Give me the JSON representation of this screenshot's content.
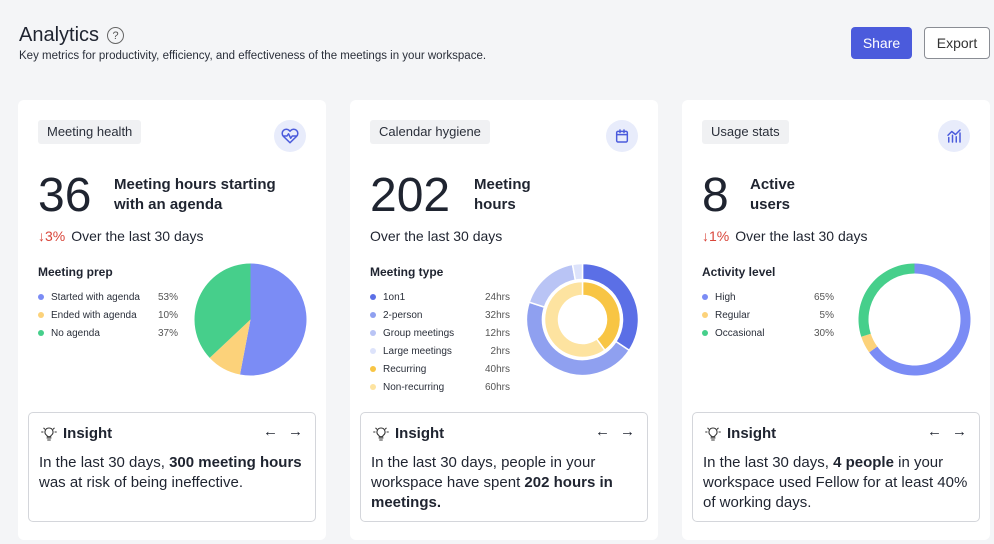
{
  "header": {
    "title": "Analytics",
    "help_glyph": "?",
    "subtitle": "Key metrics for productivity, efficiency, and effectiveness of the meetings in your workspace.",
    "share_label": "Share",
    "export_label": "Export"
  },
  "colors": {
    "accent": "#4b5bdc",
    "down": "#d9453a"
  },
  "cards": [
    {
      "tag": "Meeting health",
      "icon": "heart-pulse-icon",
      "number": "36",
      "label_line1": "Meeting hours starting",
      "label_line2": "with an agenda",
      "change": "3%",
      "change_text": "Over the last 30 days",
      "legend_title": "Meeting prep",
      "legend": [
        {
          "name": "Started with agenda",
          "value": "53%",
          "color": "#7b8cf5"
        },
        {
          "name": "Ended with agenda",
          "value": "10%",
          "color": "#fcd27a"
        },
        {
          "name": "No agenda",
          "value": "37%",
          "color": "#46cf8b"
        }
      ],
      "insight_title": "Insight",
      "insight_pre": "In the last 30 days, ",
      "insight_bold": "300 meeting hours",
      "insight_post": " was at risk of being ineffective.",
      "insight_bold2": "",
      "insight_post2": ""
    },
    {
      "tag": "Calendar hygiene",
      "icon": "calendar-icon",
      "number": "202",
      "label_line1": "Meeting",
      "label_line2": "hours",
      "change": "",
      "change_text": "Over the last 30 days",
      "legend_title": "Meeting type",
      "legend": [
        {
          "name": "1on1",
          "value": "24hrs",
          "color": "#5b6fe6"
        },
        {
          "name": "2-person",
          "value": "32hrs",
          "color": "#8fa0f0"
        },
        {
          "name": "Group meetings",
          "value": "12hrs",
          "color": "#b9c4f5"
        },
        {
          "name": "Large meetings",
          "value": "2hrs",
          "color": "#dde3fb"
        },
        {
          "name": "Recurring",
          "value": "40hrs",
          "color": "#f8c544"
        },
        {
          "name": "Non-recurring",
          "value": "60hrs",
          "color": "#fde3a0"
        }
      ],
      "insight_title": "Insight",
      "insight_pre": "In the last 30 days, people in your workspace have spent ",
      "insight_bold": "202 hours in meetings.",
      "insight_post": "",
      "insight_bold2": "",
      "insight_post2": ""
    },
    {
      "tag": "Usage stats",
      "icon": "bar-chart-icon",
      "number": "8",
      "label_line1": "Active",
      "label_line2": "users",
      "change": "1%",
      "change_text": "Over the last 30 days",
      "legend_title": "Activity level",
      "legend": [
        {
          "name": "High",
          "value": "65%",
          "color": "#7b8cf5"
        },
        {
          "name": "Regular",
          "value": "5%",
          "color": "#fcd27a"
        },
        {
          "name": "Occasional",
          "value": "30%",
          "color": "#46cf8b"
        }
      ],
      "insight_title": "Insight",
      "insight_pre": "In the last 30 days, ",
      "insight_bold": "4 people",
      "insight_post": " in your workspace used Fellow for at least 40% of working days.",
      "insight_bold2": "",
      "insight_post2": ""
    }
  ],
  "chart_data": [
    {
      "type": "pie",
      "categories": [
        "Started with agenda",
        "Ended with agenda",
        "No agenda"
      ],
      "values": [
        53,
        10,
        37
      ]
    },
    {
      "type": "pie",
      "variant": "nested-donut",
      "series": [
        {
          "categories": [
            "1on1",
            "2-person",
            "Group meetings",
            "Large meetings"
          ],
          "values": [
            24,
            32,
            12,
            2
          ]
        },
        {
          "categories": [
            "Recurring",
            "Non-recurring"
          ],
          "values": [
            40,
            60
          ]
        }
      ]
    },
    {
      "type": "pie",
      "variant": "donut",
      "categories": [
        "High",
        "Regular",
        "Occasional"
      ],
      "values": [
        65,
        5,
        30
      ]
    }
  ]
}
